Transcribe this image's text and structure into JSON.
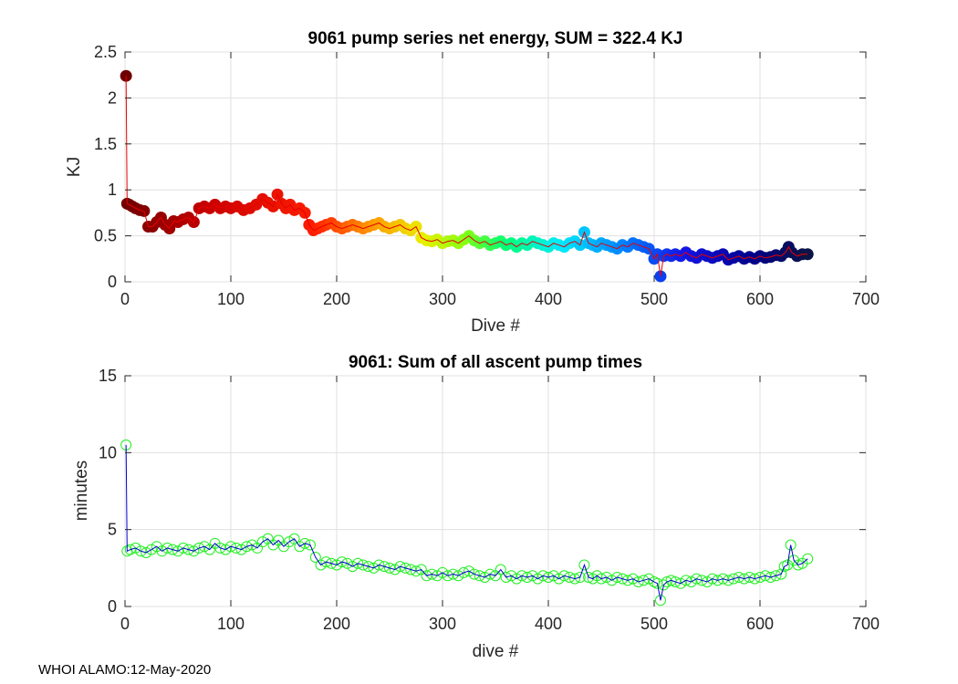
{
  "footer": "WHOI ALAMO:12-May-2020",
  "chart_data": [
    {
      "type": "scatter",
      "title": "9061 pump series net energy, SUM = 322.4 KJ",
      "xlabel": "Dive #",
      "ylabel": "KJ",
      "xlim": [
        0,
        700
      ],
      "ylim": [
        0,
        2.5
      ],
      "xticks": [
        "0",
        "100",
        "200",
        "300",
        "400",
        "500",
        "600",
        "700"
      ],
      "yticks": [
        "0",
        "0.5",
        "1",
        "1.5",
        "2",
        "2.5"
      ],
      "grid": true,
      "marker_colormap": "jet-dark (colored by dive #)",
      "line_color": "#e60000",
      "series": [
        {
          "x": [
            1,
            2,
            4,
            7,
            10,
            14,
            18,
            22,
            26,
            30,
            34,
            38,
            42,
            46,
            50,
            55,
            60,
            65,
            70,
            75,
            80,
            85,
            90,
            95,
            100,
            106,
            112,
            118,
            124,
            130,
            135,
            140,
            144,
            148,
            152,
            156,
            160,
            165,
            170,
            174,
            178,
            182,
            186,
            190,
            195,
            200,
            205,
            210,
            215,
            220,
            225,
            230,
            235,
            240,
            245,
            250,
            255,
            260,
            265,
            270,
            275,
            280,
            285,
            290,
            295,
            300,
            305,
            310,
            315,
            320,
            325,
            330,
            335,
            340,
            345,
            350,
            355,
            360,
            365,
            370,
            375,
            380,
            385,
            390,
            395,
            400,
            405,
            410,
            415,
            420,
            425,
            430,
            434,
            438,
            442,
            446,
            450,
            455,
            460,
            465,
            470,
            475,
            480,
            485,
            490,
            495,
            500,
            503,
            506,
            509,
            512,
            516,
            520,
            525,
            530,
            535,
            540,
            545,
            550,
            555,
            560,
            565,
            570,
            575,
            580,
            585,
            590,
            595,
            600,
            605,
            610,
            615,
            620,
            624,
            627,
            630,
            635,
            640,
            645
          ],
          "y": [
            2.24,
            0.85,
            0.84,
            0.82,
            0.8,
            0.78,
            0.77,
            0.6,
            0.6,
            0.65,
            0.7,
            0.62,
            0.58,
            0.66,
            0.65,
            0.68,
            0.7,
            0.65,
            0.8,
            0.82,
            0.8,
            0.84,
            0.8,
            0.82,
            0.8,
            0.82,
            0.78,
            0.8,
            0.84,
            0.9,
            0.86,
            0.82,
            0.95,
            0.85,
            0.8,
            0.84,
            0.78,
            0.8,
            0.75,
            0.62,
            0.56,
            0.58,
            0.6,
            0.62,
            0.64,
            0.6,
            0.58,
            0.6,
            0.62,
            0.6,
            0.58,
            0.6,
            0.62,
            0.64,
            0.6,
            0.58,
            0.6,
            0.62,
            0.58,
            0.56,
            0.6,
            0.48,
            0.45,
            0.44,
            0.46,
            0.42,
            0.44,
            0.45,
            0.42,
            0.46,
            0.5,
            0.45,
            0.42,
            0.44,
            0.4,
            0.42,
            0.44,
            0.4,
            0.42,
            0.38,
            0.42,
            0.4,
            0.44,
            0.42,
            0.4,
            0.38,
            0.42,
            0.4,
            0.38,
            0.42,
            0.44,
            0.4,
            0.54,
            0.42,
            0.4,
            0.38,
            0.42,
            0.4,
            0.38,
            0.36,
            0.4,
            0.38,
            0.42,
            0.4,
            0.38,
            0.36,
            0.25,
            0.3,
            0.06,
            0.28,
            0.3,
            0.28,
            0.3,
            0.28,
            0.32,
            0.28,
            0.26,
            0.3,
            0.28,
            0.26,
            0.28,
            0.3,
            0.24,
            0.26,
            0.28,
            0.25,
            0.27,
            0.25,
            0.28,
            0.26,
            0.27,
            0.29,
            0.28,
            0.32,
            0.38,
            0.32,
            0.28,
            0.3,
            0.3
          ]
        }
      ]
    },
    {
      "type": "scatter",
      "title": "9061: Sum of all ascent pump times",
      "xlabel": "dive #",
      "ylabel": "minutes",
      "xlim": [
        0,
        700
      ],
      "ylim": [
        0,
        15
      ],
      "xticks": [
        "0",
        "100",
        "200",
        "300",
        "400",
        "500",
        "600",
        "700"
      ],
      "yticks": [
        "0",
        "5",
        "10",
        "15"
      ],
      "grid": true,
      "marker_color": "#22ee22",
      "line_color": "#0000cc",
      "series": [
        {
          "x": [
            1,
            2,
            5,
            10,
            15,
            20,
            25,
            30,
            35,
            40,
            45,
            50,
            55,
            60,
            65,
            70,
            75,
            80,
            85,
            90,
            95,
            100,
            105,
            110,
            115,
            120,
            125,
            130,
            135,
            140,
            145,
            150,
            155,
            160,
            165,
            170,
            175,
            180,
            185,
            190,
            195,
            200,
            205,
            210,
            215,
            220,
            225,
            230,
            235,
            240,
            245,
            250,
            255,
            260,
            265,
            270,
            275,
            280,
            285,
            290,
            295,
            300,
            305,
            310,
            315,
            320,
            325,
            330,
            335,
            340,
            345,
            350,
            355,
            360,
            365,
            370,
            375,
            380,
            385,
            390,
            395,
            400,
            405,
            410,
            415,
            420,
            425,
            430,
            434,
            438,
            442,
            446,
            450,
            455,
            460,
            465,
            470,
            475,
            480,
            485,
            490,
            495,
            500,
            503,
            506,
            509,
            512,
            516,
            520,
            525,
            530,
            535,
            540,
            545,
            550,
            555,
            560,
            565,
            570,
            575,
            580,
            585,
            590,
            595,
            600,
            605,
            610,
            615,
            620,
            623,
            626,
            629,
            632,
            636,
            640,
            645
          ],
          "y": [
            10.5,
            3.6,
            3.7,
            3.8,
            3.6,
            3.5,
            3.7,
            3.9,
            3.6,
            3.8,
            3.7,
            3.6,
            3.8,
            3.7,
            3.6,
            3.8,
            3.9,
            3.7,
            4.1,
            3.8,
            3.7,
            3.9,
            3.8,
            3.7,
            3.9,
            4.0,
            3.8,
            4.2,
            4.4,
            4.0,
            4.3,
            3.9,
            4.2,
            4.4,
            3.9,
            4.1,
            4.0,
            3.2,
            2.7,
            2.9,
            2.8,
            2.7,
            2.9,
            2.8,
            2.6,
            2.8,
            2.7,
            2.6,
            2.5,
            2.7,
            2.6,
            2.5,
            2.4,
            2.6,
            2.5,
            2.4,
            2.3,
            2.4,
            2.0,
            2.1,
            2.0,
            2.2,
            2.0,
            2.1,
            2.0,
            2.2,
            2.3,
            2.1,
            2.0,
            1.9,
            2.1,
            2.0,
            2.4,
            1.9,
            2.0,
            1.8,
            2.0,
            1.9,
            2.0,
            1.8,
            2.0,
            1.9,
            2.0,
            1.8,
            2.0,
            1.9,
            1.8,
            1.9,
            2.7,
            1.9,
            1.8,
            2.0,
            1.8,
            1.9,
            1.7,
            1.9,
            1.8,
            1.7,
            1.8,
            1.6,
            1.7,
            1.8,
            1.6,
            1.5,
            0.4,
            1.4,
            1.6,
            1.7,
            1.6,
            1.5,
            1.7,
            1.6,
            1.8,
            1.7,
            1.6,
            1.8,
            1.7,
            1.8,
            1.7,
            1.8,
            1.9,
            1.8,
            1.9,
            1.8,
            1.9,
            2.0,
            1.9,
            2.0,
            2.1,
            2.6,
            2.7,
            4.0,
            3.0,
            2.7,
            2.8,
            3.1
          ]
        }
      ]
    }
  ]
}
